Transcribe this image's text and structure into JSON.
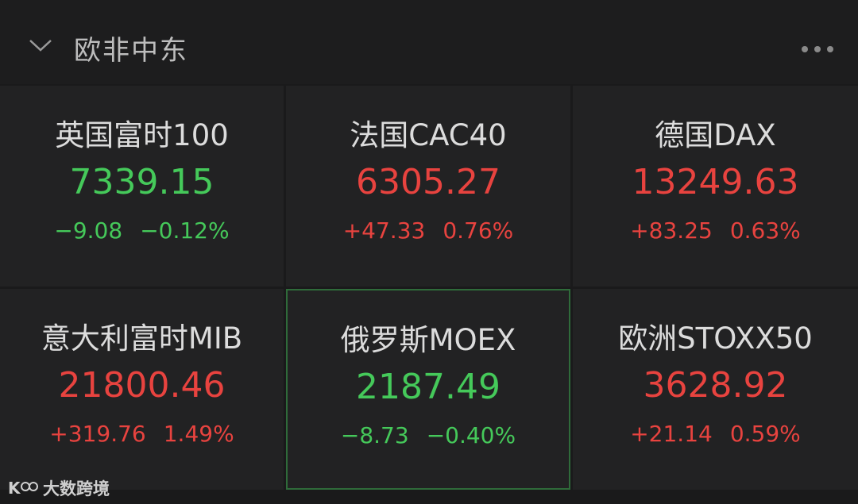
{
  "header": {
    "title": "欧非中东"
  },
  "indices": [
    {
      "name": "英国富时100",
      "price": "7339.15",
      "change": "−9.08",
      "percent": "−0.12%",
      "color": "#45c95a"
    },
    {
      "name": "法国CAC40",
      "price": "6305.27",
      "change": "+47.33",
      "percent": "0.76%",
      "color": "#e8433f"
    },
    {
      "name": "德国DAX",
      "price": "13249.63",
      "change": "+83.25",
      "percent": "0.63%",
      "color": "#e8433f"
    },
    {
      "name": "意大利富时MIB",
      "price": "21800.46",
      "change": "+319.76",
      "percent": "1.49%",
      "color": "#e8433f"
    },
    {
      "name": "俄罗斯MOEX",
      "price": "2187.49",
      "change": "−8.73",
      "percent": "−0.40%",
      "color": "#45c95a"
    },
    {
      "name": "欧洲STOXX50",
      "price": "3628.92",
      "change": "+21.14",
      "percent": "0.59%",
      "color": "#e8433f"
    }
  ],
  "watermark": {
    "text": "大数跨境"
  }
}
